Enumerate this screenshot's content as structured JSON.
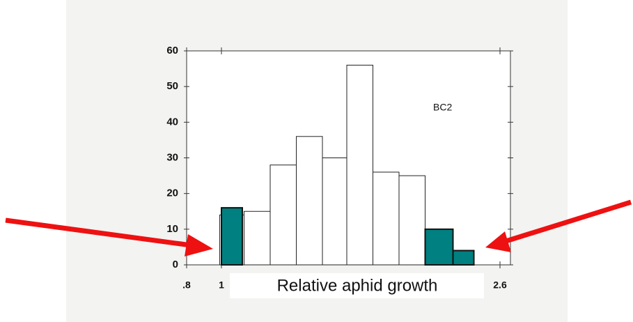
{
  "chart_data": {
    "type": "histogram",
    "bins": [
      0.99,
      1.13,
      1.28,
      1.43,
      1.58,
      1.72,
      1.87,
      2.02,
      2.17
    ],
    "counts": [
      14,
      15,
      28,
      36,
      30,
      56,
      26,
      25
    ],
    "color": "#ffffff",
    "highlights": [
      {
        "bins": [
          1.0,
          1.12
        ],
        "count": 16
      },
      {
        "bins": [
          2.17,
          2.33
        ],
        "count": 10
      },
      {
        "bins": [
          2.33,
          2.45
        ],
        "count": 4
      }
    ],
    "highlight_color": "#008080",
    "xlim": [
      0.8,
      2.66
    ],
    "ylim": [
      0,
      60
    ],
    "xticks": [
      {
        "value": 0.8,
        "label": ".8"
      },
      1,
      2.6
    ],
    "yticks": [
      0,
      10,
      20,
      30,
      40,
      50,
      60
    ],
    "xlabel": "Relative aphid growth",
    "annotation": "BC2"
  }
}
